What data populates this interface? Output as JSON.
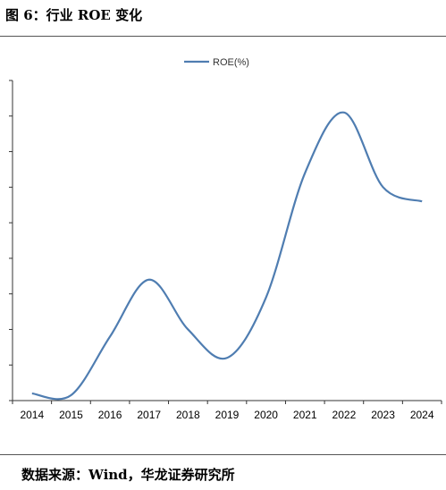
{
  "header": {
    "title": "图 6：行业 ROE 变化"
  },
  "footer": {
    "source": "数据来源：Wind，华龙证券研究所"
  },
  "chart_data": {
    "type": "line",
    "title": "",
    "xlabel": "",
    "ylabel": "",
    "legend_position": "top-center",
    "y_tick_labels_shown": false,
    "grid": false,
    "categories": [
      "2014",
      "2015",
      "2016",
      "2017",
      "2018",
      "2019",
      "2020",
      "2021",
      "2022",
      "2023",
      "2024"
    ],
    "ylim": [
      0,
      9
    ],
    "series": [
      {
        "name": "ROE(%)",
        "color": "#4f7db1",
        "values": [
          0.2,
          0.15,
          1.8,
          3.4,
          2.0,
          1.2,
          2.9,
          6.4,
          8.1,
          6.0,
          5.6
        ]
      }
    ]
  }
}
